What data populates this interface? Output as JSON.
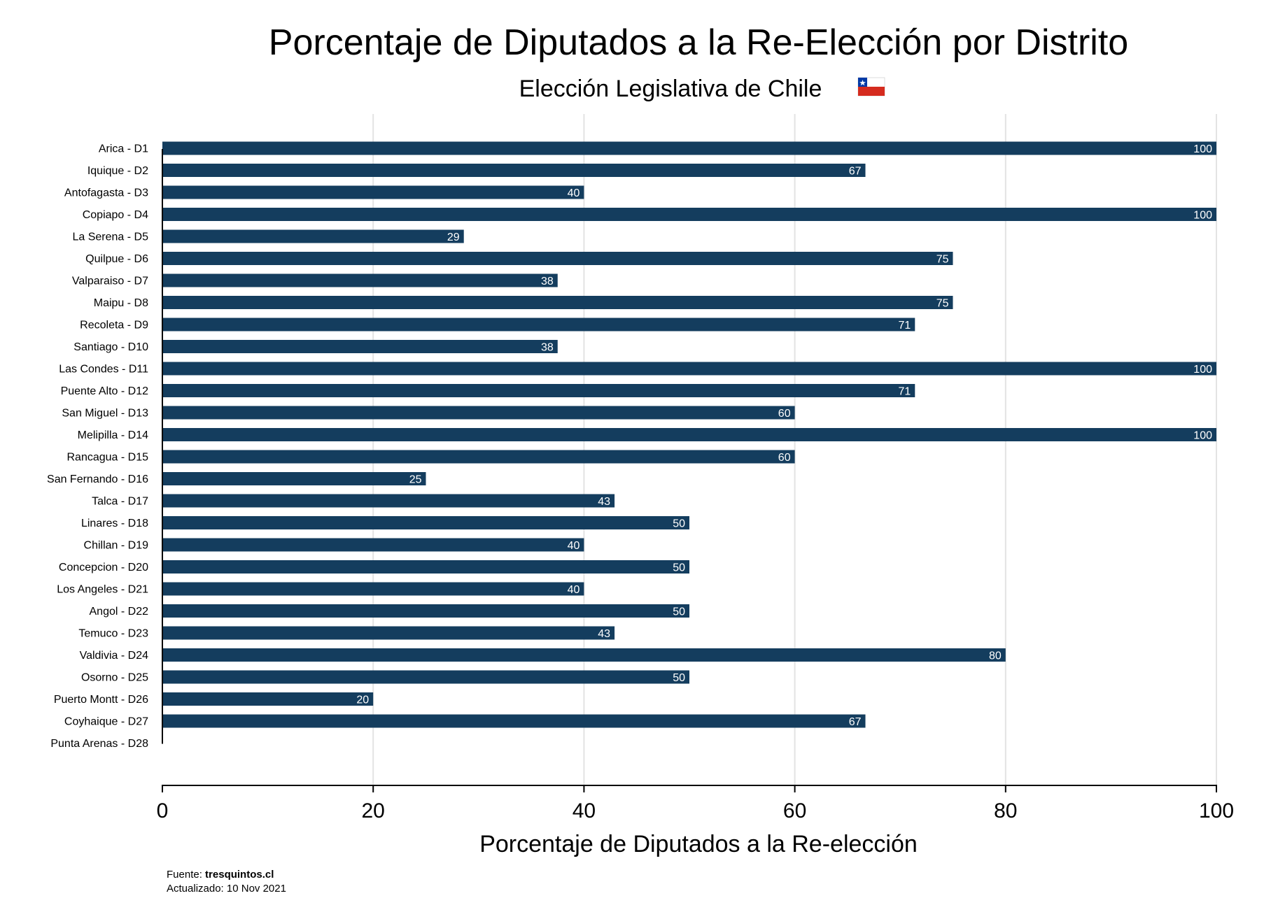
{
  "chart_data": {
    "type": "bar",
    "orientation": "horizontal",
    "title": "Porcentaje de Diputados a la Re-Elección por Distrito",
    "subtitle": "Elección Legislativa de Chile",
    "subtitle_icon": "chile-flag-icon",
    "xlabel": "Porcentaje de Diputados a la Re-elección",
    "ylabel": "",
    "xlim": [
      0,
      100
    ],
    "xticks": [
      "0",
      "20",
      "40",
      "60",
      "80",
      "100"
    ],
    "grid": "vertical",
    "bar_color": "#143d5e",
    "categories": [
      "Arica - D1",
      "Iquique - D2",
      "Antofagasta - D3",
      "Copiapo - D4",
      "La Serena - D5",
      "Quilpue - D6",
      "Valparaiso - D7",
      "Maipu - D8",
      "Recoleta - D9",
      "Santiago - D10",
      "Las Condes - D11",
      "Puente Alto - D12",
      "San Miguel - D13",
      "Melipilla - D14",
      "Rancagua - D15",
      "San Fernando - D16",
      "Talca - D17",
      "Linares - D18",
      "Chillan - D19",
      "Concepcion - D20",
      "Los Angeles - D21",
      "Angol - D22",
      "Temuco - D23",
      "Valdivia - D24",
      "Osorno - D25",
      "Puerto Montt - D26",
      "Coyhaique - D27",
      "Punta Arenas - D28"
    ],
    "values": [
      100,
      66.7,
      40,
      100,
      28.6,
      75,
      37.5,
      75,
      71.4,
      37.5,
      100,
      71.4,
      60,
      100,
      60,
      25,
      42.9,
      50,
      40,
      50,
      40,
      50,
      42.9,
      80,
      50,
      20,
      66.7,
      null
    ],
    "value_labels": [
      "100",
      "67",
      "40",
      "100",
      "29",
      "75",
      "38",
      "75",
      "71",
      "38",
      "100",
      "71",
      "60",
      "100",
      "60",
      "25",
      "43",
      "50",
      "40",
      "50",
      "40",
      "50",
      "43",
      "80",
      "50",
      "20",
      "67",
      ""
    ]
  },
  "footer": {
    "source_prefix": "Fuente: ",
    "source_name": "tresquintos.cl",
    "updated": "Actualizado: 10 Nov 2021"
  }
}
